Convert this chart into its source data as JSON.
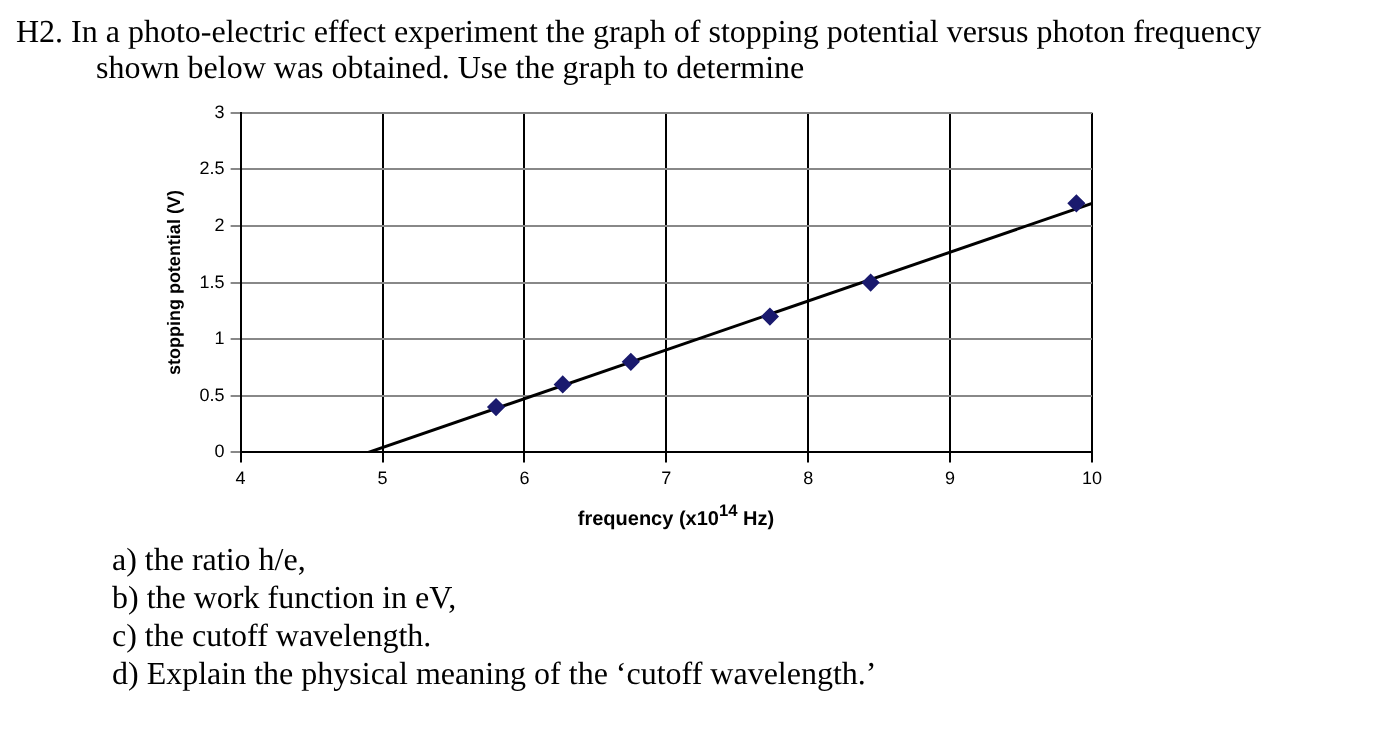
{
  "chart_data": {
    "type": "scatter",
    "title": "H2.  In a photo-electric effect experiment the graph of stopping potential versus photon frequency shown below was obtained.  Use the graph to determine",
    "xlabel": "frequency (x10$^{14}$ Hz)",
    "ylabel": "stopping potential (V)",
    "series": [
      {
        "color": "#1a1a6e",
        "x": [
          5.8,
          6.27,
          6.75,
          7.73,
          8.44,
          9.89
        ],
        "values": [
          0.4,
          0.6,
          0.8,
          1.2,
          1.5,
          2.2
        ],
        "marker": "diamond"
      },
      {
        "type": "line",
        "color": "#000000",
        "x": [
          4.9,
          10
        ],
        "values": [
          0,
          2.2
        ],
        "marker": "none",
        "line_style": "solid"
      }
    ],
    "xlim": [
      4,
      10
    ],
    "xticks": [
      4,
      5,
      6,
      7,
      8,
      9,
      10
    ],
    "ylim": [
      0,
      3
    ],
    "yticks": [
      0,
      0.5,
      1,
      1.5,
      2,
      2.5,
      3
    ],
    "grid": true,
    "legend": false,
    "annotations": [
      "a)  the ratio h/e,",
      "b)  the work function in eV,",
      "c)  the cutoff wavelength.",
      "d)  Explain the physical meaning of the ‘cutoff wavelength.’"
    ]
  }
}
